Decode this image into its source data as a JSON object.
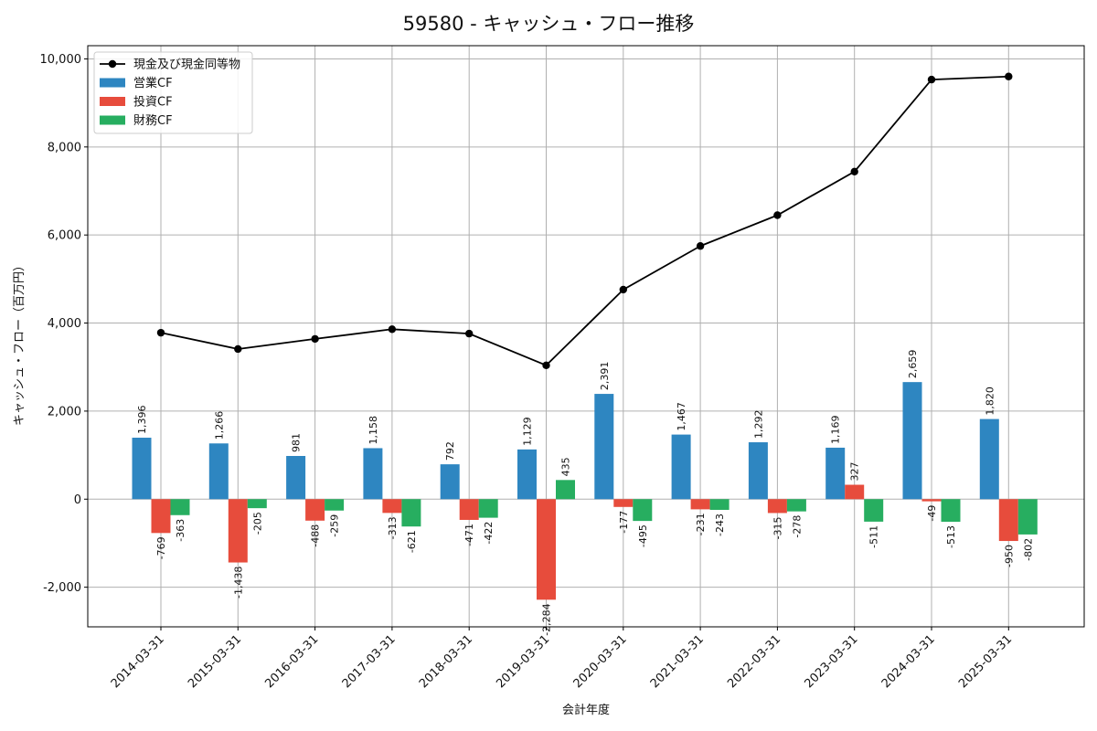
{
  "chart_data": {
    "type": "bar",
    "title": "59580 - キャッシュ・フロー推移",
    "xlabel": "会計年度",
    "ylabel": "キャッシュ・フロー（百万円）",
    "categories": [
      "2014-03-31",
      "2015-03-31",
      "2016-03-31",
      "2017-03-31",
      "2018-03-31",
      "2019-03-31",
      "2020-03-31",
      "2021-03-31",
      "2022-03-31",
      "2023-03-31",
      "2024-03-31",
      "2025-03-31"
    ],
    "y_ticks": [
      "-2,000",
      "0",
      "2,000",
      "4,000",
      "6,000",
      "8,000",
      "10,000"
    ],
    "ylim": [
      -2900,
      10300
    ],
    "grid": true,
    "legend_position": "top-left",
    "series": [
      {
        "name": "営業CF",
        "type": "bar",
        "color": "#2e86c1",
        "values": [
          1396,
          1266,
          981,
          1158,
          792,
          1129,
          2391,
          1467,
          1292,
          1169,
          2659,
          1820
        ],
        "labels": [
          "1,396",
          "1,266",
          "981",
          "1,158",
          "792",
          "1,129",
          "2,391",
          "1,467",
          "1,292",
          "1,169",
          "2,659",
          "1,820"
        ]
      },
      {
        "name": "投資CF",
        "type": "bar",
        "color": "#e74c3c",
        "values": [
          -769,
          -1438,
          -488,
          -313,
          -471,
          -2284,
          -177,
          -231,
          -315,
          327,
          -49,
          -950
        ],
        "labels": [
          "-769",
          "-1,438",
          "-488",
          "-313",
          "-471",
          "-2,284",
          "-177",
          "-231",
          "-315",
          "327",
          "-49",
          "-950"
        ]
      },
      {
        "name": "財務CF",
        "type": "bar",
        "color": "#27ae60",
        "values": [
          -363,
          -205,
          -259,
          -621,
          -422,
          435,
          -495,
          -243,
          -278,
          -511,
          -513,
          -802
        ],
        "labels": [
          "-363",
          "-205",
          "-259",
          "-621",
          "-422",
          "435",
          "-495",
          "-243",
          "-278",
          "-511",
          "-513",
          "-802"
        ]
      },
      {
        "name": "現金及び現金同等物",
        "type": "line",
        "color": "#000000",
        "values": [
          3780,
          3410,
          3640,
          3860,
          3760,
          3040,
          4760,
          5750,
          6450,
          7440,
          9530,
          9600
        ]
      }
    ]
  }
}
